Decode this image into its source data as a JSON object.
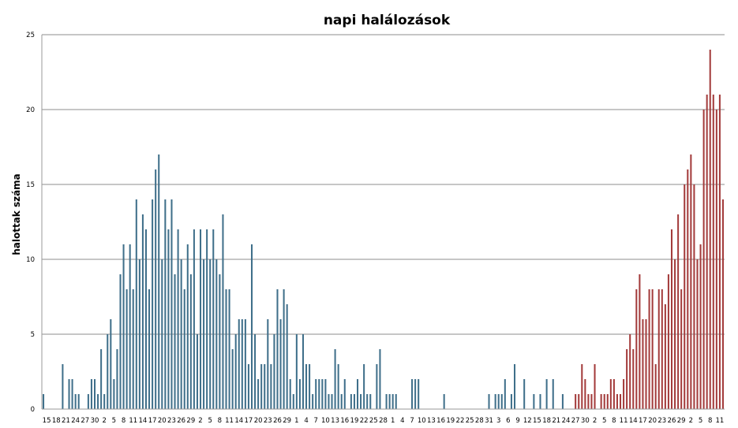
{
  "chart_data": {
    "type": "bar",
    "title": "napi halálozások",
    "xlabel": "",
    "ylabel": "halottak száma",
    "ylim": [
      0,
      25
    ],
    "yticks": [
      0,
      5,
      10,
      15,
      20,
      25
    ],
    "grid": true,
    "colors": {
      "first_wave": "#3f6f8a",
      "second_wave": "#a33b3b"
    },
    "x_tick_labels": [
      "15",
      "18",
      "21",
      "24",
      "27",
      "30",
      "2",
      "5",
      "8",
      "11",
      "14",
      "17",
      "20",
      "23",
      "26",
      "29",
      "2",
      "5",
      "8",
      "11",
      "14",
      "17",
      "20",
      "23",
      "26",
      "29",
      "1",
      "4",
      "7",
      "10",
      "13",
      "16",
      "19",
      "22",
      "25",
      "28",
      "1",
      "4",
      "7",
      "10",
      "13",
      "16",
      "19",
      "22",
      "25",
      "28",
      "31",
      "3",
      "6",
      "9",
      "12",
      "15",
      "18",
      "21",
      "24",
      "27",
      "30",
      "2",
      "5",
      "8",
      "11",
      "14",
      "17",
      "20",
      "23",
      "26",
      "29",
      "2",
      "5",
      "8",
      "11"
    ],
    "series": [
      {
        "color_key": "first_wave",
        "values": [
          1,
          0,
          0,
          0,
          0,
          0,
          3,
          0,
          2,
          2,
          1,
          1,
          0,
          0,
          1,
          2,
          2,
          1,
          4,
          1,
          5,
          6,
          2,
          4,
          9,
          11,
          8,
          11,
          8,
          14,
          10,
          13,
          12,
          8,
          14,
          16,
          17,
          10,
          14,
          12,
          14,
          9,
          12,
          10,
          8,
          11,
          9,
          12,
          5,
          12,
          10,
          12,
          10,
          12,
          10,
          9,
          13,
          8,
          8,
          4,
          5,
          6,
          6,
          6,
          3,
          11,
          5,
          2,
          3,
          3,
          6,
          3,
          5,
          8,
          6,
          8,
          7,
          2,
          1,
          5,
          2,
          5,
          3,
          3,
          1,
          2,
          2,
          2,
          2,
          1,
          1,
          4,
          3,
          1,
          2,
          0,
          1,
          1,
          2,
          1,
          3,
          1,
          1,
          0,
          3,
          4,
          0,
          1,
          1,
          1,
          1,
          0,
          0,
          0,
          0,
          2,
          2,
          2,
          0,
          0,
          0,
          0,
          0,
          0,
          0,
          1,
          0,
          0,
          0,
          0,
          0,
          0,
          0,
          0,
          0,
          0,
          0,
          0,
          0,
          1,
          0,
          1,
          1,
          1,
          2,
          0,
          1,
          3,
          0,
          0,
          2,
          0,
          0,
          1,
          0,
          1,
          0,
          2,
          0,
          2,
          0,
          0,
          1,
          0,
          0,
          0
        ]
      },
      {
        "color_key": "second_wave",
        "values": [
          1,
          1,
          3,
          2,
          1,
          1,
          3,
          0,
          1,
          1,
          1,
          2,
          2,
          1,
          1,
          2,
          4,
          5,
          4,
          8,
          9,
          6,
          6,
          8,
          8,
          3,
          8,
          8,
          7,
          9,
          12,
          10,
          13,
          8,
          15,
          16,
          17,
          15,
          10,
          11,
          20,
          21,
          24,
          21,
          20,
          21,
          14
        ]
      }
    ]
  }
}
